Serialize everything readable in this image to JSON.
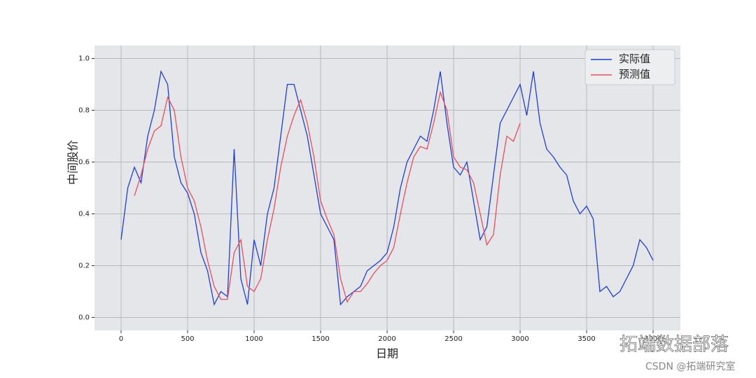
{
  "chart_data": {
    "type": "line",
    "x_label": "日期",
    "y_label": "中间股价",
    "x": [
      0,
      50,
      100,
      150,
      200,
      250,
      300,
      350,
      400,
      450,
      500,
      550,
      600,
      650,
      700,
      750,
      800,
      850,
      900,
      950,
      1000,
      1050,
      1100,
      1150,
      1200,
      1250,
      1300,
      1350,
      1400,
      1450,
      1500,
      1550,
      1600,
      1650,
      1700,
      1750,
      1800,
      1850,
      1900,
      1950,
      2000,
      2050,
      2100,
      2150,
      2200,
      2250,
      2300,
      2350,
      2400,
      2450,
      2500,
      2550,
      2600,
      2650,
      2700,
      2750,
      2800,
      2850,
      2900,
      2950,
      3000,
      3050,
      3100,
      3150,
      3200,
      3250,
      3300,
      3350,
      3400,
      3450,
      3500,
      3550,
      3600,
      3650,
      3700,
      3750,
      3800,
      3850,
      3900,
      3950,
      4000
    ],
    "series": [
      {
        "name": "实际值",
        "color": "#1f3fdc",
        "values": [
          0.3,
          0.5,
          0.58,
          0.52,
          0.7,
          0.8,
          0.95,
          0.9,
          0.62,
          0.52,
          0.48,
          0.4,
          0.25,
          0.18,
          0.05,
          0.1,
          0.08,
          0.65,
          0.15,
          0.05,
          0.3,
          0.2,
          0.4,
          0.5,
          0.7,
          0.9,
          0.9,
          0.8,
          0.7,
          0.55,
          0.4,
          0.35,
          0.3,
          0.05,
          0.08,
          0.1,
          0.12,
          0.18,
          0.2,
          0.22,
          0.25,
          0.35,
          0.5,
          0.6,
          0.65,
          0.7,
          0.68,
          0.8,
          0.95,
          0.75,
          0.58,
          0.55,
          0.6,
          0.45,
          0.3,
          0.35,
          0.55,
          0.75,
          0.8,
          0.85,
          0.9,
          0.78,
          0.95,
          0.75,
          0.65,
          0.62,
          0.58,
          0.55,
          0.45,
          0.4,
          0.43,
          0.38,
          0.1,
          0.12,
          0.08,
          0.1,
          0.15,
          0.2,
          0.3,
          0.27,
          0.22
        ]
      },
      {
        "name": "预测值",
        "color": "#e8505e",
        "values": [
          null,
          null,
          0.47,
          0.55,
          0.65,
          0.72,
          0.74,
          0.85,
          0.8,
          0.62,
          0.5,
          0.45,
          0.35,
          0.22,
          0.12,
          0.07,
          0.07,
          0.25,
          0.3,
          0.12,
          0.1,
          0.15,
          0.3,
          0.42,
          0.58,
          0.7,
          0.78,
          0.84,
          0.75,
          0.62,
          0.45,
          0.38,
          0.32,
          0.15,
          0.06,
          0.1,
          0.1,
          0.13,
          0.17,
          0.2,
          0.22,
          0.27,
          0.4,
          0.52,
          0.62,
          0.66,
          0.65,
          0.75,
          0.87,
          0.8,
          0.62,
          0.58,
          0.57,
          0.52,
          0.4,
          0.28,
          0.32,
          0.55,
          0.7,
          0.68,
          0.75,
          null,
          null,
          null,
          null,
          null,
          null,
          null,
          null,
          null,
          null,
          null,
          null,
          null,
          null,
          null,
          null,
          null,
          null,
          null,
          null
        ]
      }
    ],
    "xlim": [
      -200,
      4205
    ],
    "ylim": [
      -0.05,
      1.05
    ],
    "xticks": [
      0,
      500,
      1000,
      1500,
      2000,
      2500,
      3000,
      3500,
      4000
    ],
    "yticks": [
      {
        "value": 0,
        "label": "0.0"
      },
      0.2,
      0.4,
      0.6,
      0.8,
      {
        "value": 1,
        "label": "1.0"
      }
    ],
    "grid": true,
    "legend": "upper right",
    "annotations": [
      "拓端数据部落",
      "CSDN @拓端研究室"
    ]
  }
}
